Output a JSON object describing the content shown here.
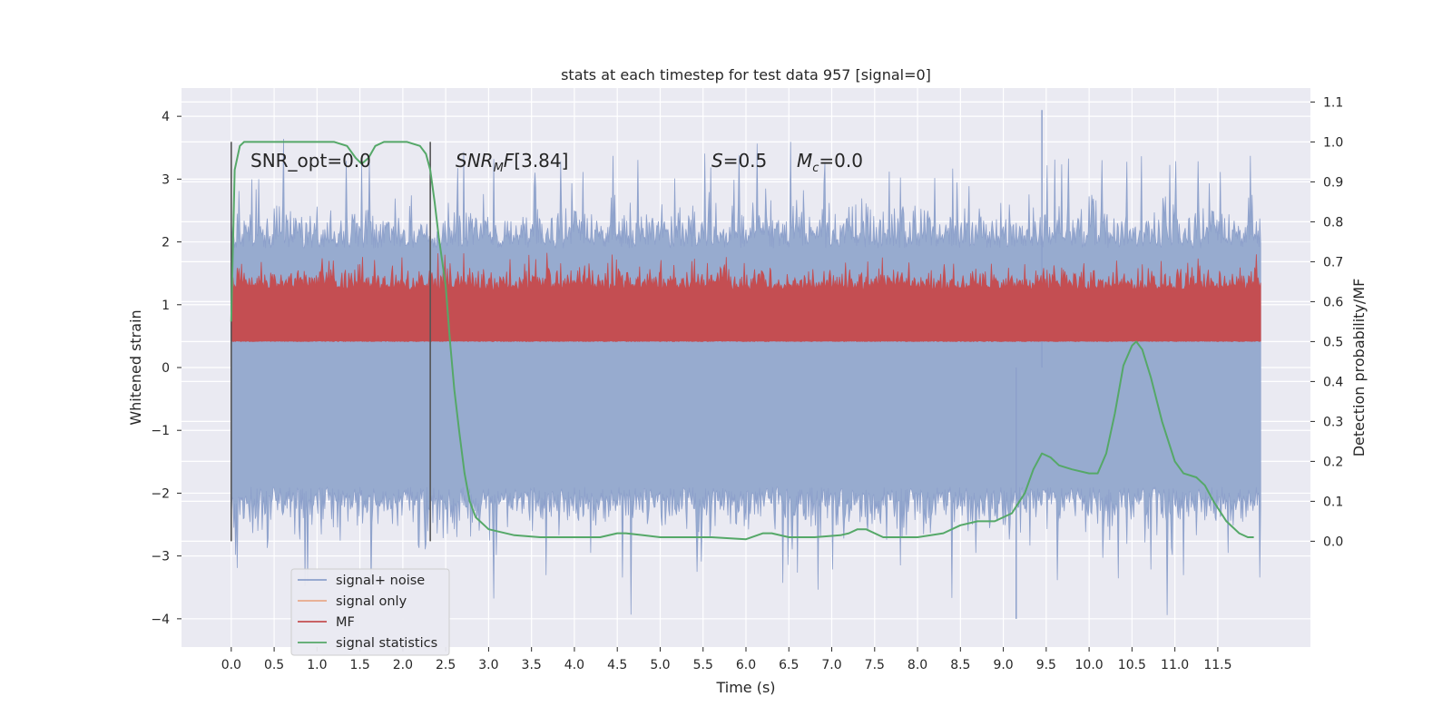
{
  "chart_data": {
    "type": "line",
    "title": "stats at each timestep for test data 957 [signal=0]",
    "xlabel": "Time (s)",
    "ylabel": "Whitened strain",
    "y2label": "Detection probability/MF",
    "xlim": [
      -0.58,
      12.58
    ],
    "ylim": [
      -4.45,
      4.45
    ],
    "y2lim": [
      -0.265,
      1.135
    ],
    "xticks": [
      0.0,
      0.5,
      1.0,
      1.5,
      2.0,
      2.5,
      3.0,
      3.5,
      4.0,
      4.5,
      5.0,
      5.5,
      6.0,
      6.5,
      7.0,
      7.5,
      8.0,
      8.5,
      9.0,
      9.5,
      10.0,
      10.5,
      11.0,
      11.5
    ],
    "xtick_labels": [
      "0.0",
      "0.5",
      "1.0",
      "1.5",
      "2.0",
      "2.5",
      "3.0",
      "3.5",
      "4.0",
      "4.5",
      "5.0",
      "5.5",
      "6.0",
      "6.5",
      "7.0",
      "7.5",
      "8.0",
      "8.5",
      "9.0",
      "9.5",
      "10.0",
      "10.5",
      "11.0",
      "11.5"
    ],
    "yticks": [
      4,
      3,
      2,
      1,
      0,
      -1,
      -2,
      -3,
      -4
    ],
    "ytick_labels": [
      "4",
      "3",
      "2",
      "1",
      "0",
      "−1",
      "−2",
      "−3",
      "−4"
    ],
    "y2ticks": [
      1.1,
      1.0,
      0.9,
      0.8,
      0.7,
      0.6,
      0.5,
      0.4,
      0.3,
      0.2,
      0.1,
      0.0
    ],
    "y2tick_labels": [
      "1.1",
      "1.0",
      "0.9",
      "0.8",
      "0.7",
      "0.6",
      "0.5",
      "0.4",
      "0.3",
      "0.2",
      "0.1",
      "0.0"
    ],
    "grid": true,
    "legend_position": "lower-left",
    "legend": [
      "signal+ noise",
      "signal only",
      "MF",
      "signal statistics"
    ],
    "annotations": {
      "snr_opt": "SNR_opt=0.0",
      "snr_mf": "[3.84]",
      "s": "=0.5",
      "mc": "=0.0"
    },
    "vertical_markers_x": [
      0.0,
      2.32
    ],
    "noise_band": {
      "x_range": [
        0.0,
        12.0
      ],
      "typical_range": [
        -1.9,
        1.9
      ],
      "extremes": [
        -4.0,
        4.1
      ]
    },
    "mf_band": {
      "x_range": [
        0.0,
        12.0
      ],
      "typical_range_prob_axis": [
        0.5,
        0.65
      ]
    },
    "series": [
      {
        "name": "signal statistics",
        "axis": "right",
        "x": [
          0.0,
          0.04,
          0.1,
          0.15,
          0.3,
          0.5,
          0.8,
          1.0,
          1.2,
          1.35,
          1.45,
          1.52,
          1.6,
          1.68,
          1.78,
          1.9,
          2.05,
          2.2,
          2.27,
          2.32,
          2.37,
          2.42,
          2.5,
          2.55,
          2.6,
          2.66,
          2.72,
          2.78,
          2.85,
          3.0,
          3.3,
          3.6,
          4.0,
          4.3,
          4.5,
          4.6,
          4.8,
          5.0,
          5.3,
          5.6,
          6.0,
          6.2,
          6.3,
          6.5,
          6.8,
          7.1,
          7.2,
          7.3,
          7.4,
          7.6,
          8.0,
          8.3,
          8.5,
          8.7,
          8.9,
          9.1,
          9.25,
          9.35,
          9.45,
          9.55,
          9.65,
          9.8,
          10.0,
          10.1,
          10.2,
          10.3,
          10.4,
          10.5,
          10.55,
          10.62,
          10.72,
          10.85,
          11.0,
          11.1,
          11.25,
          11.35,
          11.45,
          11.6,
          11.75,
          11.85,
          11.92
        ],
        "values": [
          0.55,
          0.93,
          0.99,
          1.0,
          1.0,
          1.0,
          1.0,
          1.0,
          1.0,
          0.99,
          0.96,
          0.945,
          0.96,
          0.99,
          1.0,
          1.0,
          1.0,
          0.99,
          0.97,
          0.93,
          0.85,
          0.76,
          0.64,
          0.5,
          0.38,
          0.27,
          0.17,
          0.1,
          0.06,
          0.03,
          0.015,
          0.01,
          0.01,
          0.01,
          0.02,
          0.02,
          0.015,
          0.01,
          0.01,
          0.01,
          0.005,
          0.02,
          0.02,
          0.01,
          0.01,
          0.015,
          0.02,
          0.03,
          0.03,
          0.01,
          0.01,
          0.02,
          0.04,
          0.05,
          0.05,
          0.07,
          0.12,
          0.18,
          0.22,
          0.21,
          0.19,
          0.18,
          0.17,
          0.17,
          0.22,
          0.32,
          0.44,
          0.49,
          0.5,
          0.48,
          0.41,
          0.3,
          0.2,
          0.17,
          0.16,
          0.14,
          0.1,
          0.05,
          0.02,
          0.01,
          0.01
        ]
      }
    ]
  }
}
